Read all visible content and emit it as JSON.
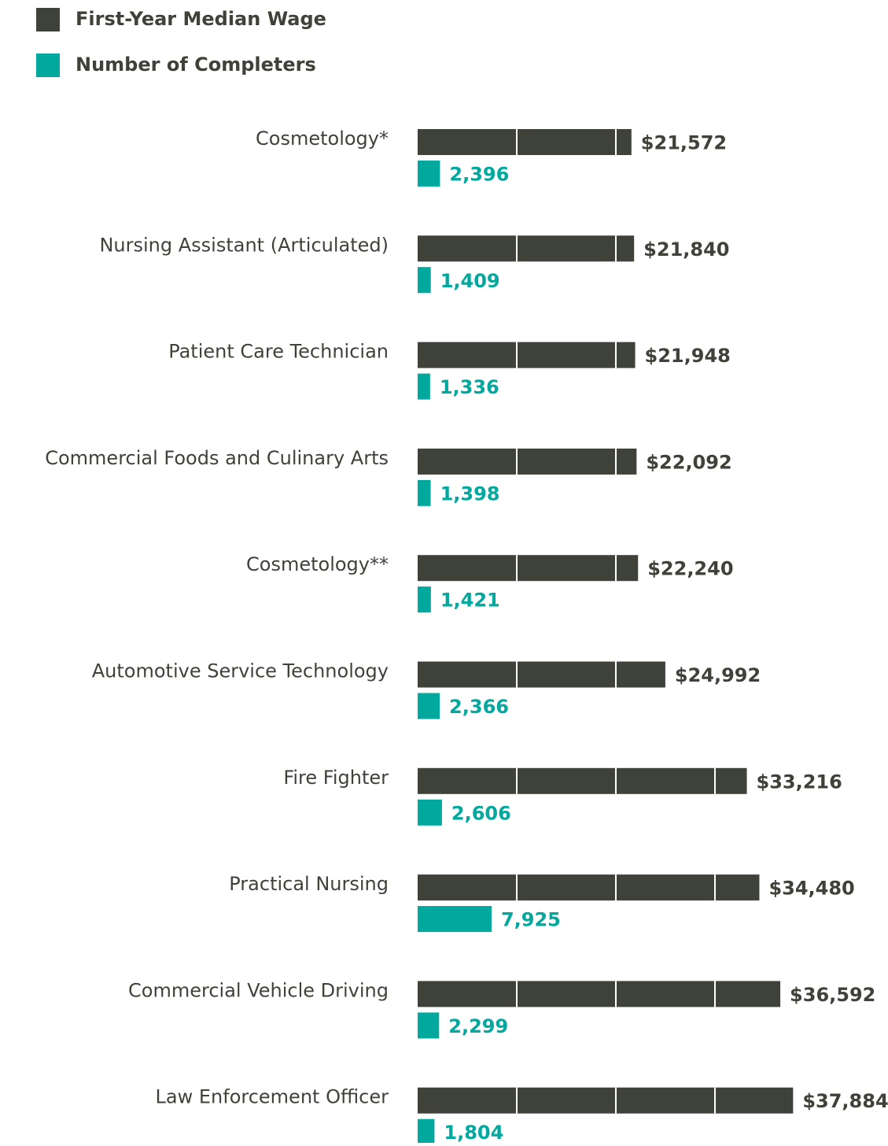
{
  "chart_data": {
    "type": "bar",
    "categories": [
      "Cosmetology*",
      "Nursing Assistant (Articulated)",
      "Patient Care Technician",
      "Commercial Foods and Culinary Arts",
      "Cosmetology**",
      "Automotive Service Technology",
      "Fire Fighter",
      "Practical Nursing",
      "Commercial Vehicle Driving",
      "Law Enforcement Officer"
    ],
    "series": [
      {
        "name": "First-Year Median Wage",
        "color": "#3f4239",
        "values": [
          21572,
          21840,
          21948,
          22092,
          22240,
          24992,
          33216,
          34480,
          36592,
          37884
        ],
        "value_labels": [
          "$21,572",
          "$21,840",
          "$21,948",
          "$22,092",
          "$22,240",
          "$24,992",
          "$33,216",
          "$34,480",
          "$36,592",
          "$37,884"
        ]
      },
      {
        "name": "Number of Completers",
        "color": "#00a89d",
        "axis": "x2",
        "values": [
          2396,
          1409,
          1336,
          1398,
          1421,
          2366,
          2606,
          7925,
          2299,
          1804
        ],
        "value_labels": [
          "2,396",
          "1,409",
          "1,336",
          "1,398",
          "1,421",
          "2,366",
          "2,606",
          "7,925",
          "2,299",
          "1,804"
        ]
      }
    ],
    "xlim": [
      0,
      40000
    ],
    "xticks": [
      10000,
      20000,
      30000
    ],
    "x2lim": [
      0,
      42500
    ],
    "grid": true
  }
}
